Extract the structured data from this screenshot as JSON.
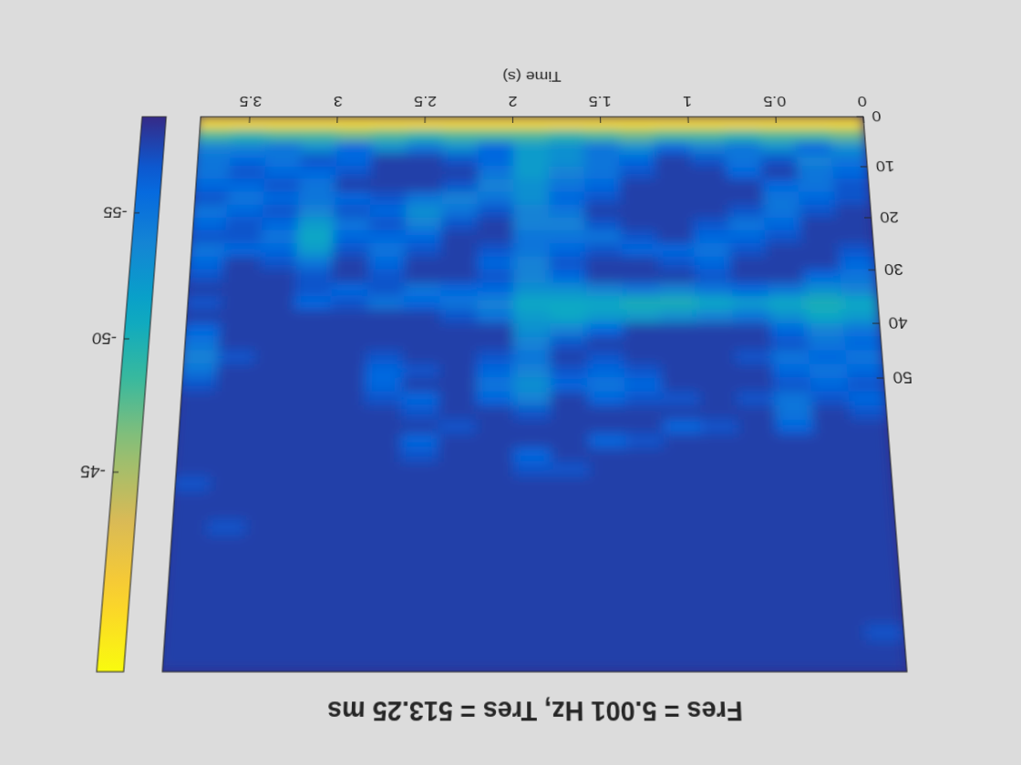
{
  "chart_data": {
    "type": "heatmap",
    "title": "Fres = 5.001 Hz, Tres = 513.25 ms",
    "x_label": "Time (s)",
    "xlim": [
      0,
      3.78
    ],
    "xticks": [
      0,
      0.5,
      1,
      1.5,
      2,
      2.5,
      3,
      3.5
    ],
    "ylim": [
      0,
      100
    ],
    "yticks": [
      0,
      10,
      20,
      30,
      40,
      50
    ],
    "colorbar_lim": [
      -59,
      -38
    ],
    "colorbar_ticks": [
      -55,
      -50,
      -45
    ],
    "x": [
      0.1,
      0.3,
      0.5,
      0.7,
      0.9,
      1.1,
      1.3,
      1.5,
      1.7,
      1.9,
      2.1,
      2.3,
      2.5,
      2.7,
      2.9,
      3.1,
      3.3,
      3.5,
      3.7
    ],
    "y": [
      1.25,
      3.75,
      6.25,
      8.75,
      11.25,
      13.75,
      16.25,
      18.75,
      21.25,
      23.75,
      26.25,
      28.75,
      31.25,
      33.75,
      36.25,
      38.75,
      41.25,
      43.75,
      46.25,
      48.75,
      51.25,
      53.75,
      56.25,
      58.75,
      61.25,
      63.75,
      66.25,
      68.75,
      71.25,
      73.75,
      76.25,
      78.75,
      81.25,
      83.75,
      86.25,
      88.75,
      91.25,
      93.75,
      96.25,
      98.75
    ],
    "z": [
      [
        -40,
        -40,
        -40,
        -40,
        -40,
        -40,
        -40,
        -40,
        -40,
        -40,
        -40,
        -40,
        -40,
        -40,
        -40,
        -40,
        -40,
        -40,
        -40
      ],
      [
        -47,
        -48,
        -48,
        -49,
        -48,
        -48,
        -47,
        -48,
        -49,
        -48,
        -48,
        -48,
        -49,
        -48,
        -47,
        -48,
        -48,
        -49,
        -48
      ],
      [
        -53,
        -56,
        -53,
        -55,
        -54,
        -56,
        -53,
        -55,
        -53,
        -52,
        -56,
        -53,
        -55,
        -53,
        -56,
        -53,
        -55,
        -54,
        -54
      ],
      [
        -55,
        -54,
        -57,
        -55,
        -57,
        -58,
        -56,
        -55,
        -53,
        -52,
        -56,
        -57,
        -58,
        -58,
        -56,
        -57,
        -55,
        -56,
        -55
      ],
      [
        -56,
        -55,
        -58,
        -56,
        -58,
        -58,
        -57,
        -55,
        -54,
        -52,
        -55,
        -58,
        -58,
        -58,
        -57,
        -56,
        -56,
        -57,
        -55
      ],
      [
        -57,
        -55,
        -56,
        -58,
        -58,
        -58,
        -58,
        -56,
        -55,
        -53,
        -54,
        -57,
        -58,
        -58,
        -58,
        -55,
        -57,
        -56,
        -56
      ],
      [
        -57,
        -56,
        -55,
        -58,
        -58,
        -58,
        -58,
        -57,
        -56,
        -53,
        -55,
        -54,
        -55,
        -57,
        -56,
        -55,
        -56,
        -55,
        -57
      ],
      [
        -58,
        -57,
        -55,
        -57,
        -58,
        -58,
        -58,
        -58,
        -55,
        -54,
        -57,
        -55,
        -53,
        -56,
        -57,
        -54,
        -57,
        -56,
        -55
      ],
      [
        -58,
        -58,
        -56,
        -55,
        -57,
        -58,
        -58,
        -57,
        -54,
        -54,
        -58,
        -57,
        -54,
        -57,
        -55,
        -52,
        -56,
        -57,
        -56
      ],
      [
        -58,
        -58,
        -57,
        -56,
        -56,
        -58,
        -57,
        -55,
        -55,
        -55,
        -58,
        -58,
        -56,
        -56,
        -56,
        -51,
        -55,
        -57,
        -57
      ],
      [
        -57,
        -58,
        -58,
        -57,
        -55,
        -56,
        -56,
        -57,
        -56,
        -55,
        -57,
        -58,
        -57,
        -55,
        -57,
        -52,
        -56,
        -56,
        -55
      ],
      [
        -56,
        -58,
        -58,
        -58,
        -56,
        -57,
        -58,
        -58,
        -57,
        -54,
        -56,
        -58,
        -58,
        -56,
        -58,
        -55,
        -57,
        -58,
        -56
      ],
      [
        -55,
        -56,
        -58,
        -58,
        -57,
        -58,
        -58,
        -58,
        -56,
        -54,
        -57,
        -58,
        -58,
        -57,
        -58,
        -57,
        -58,
        -58,
        -57
      ],
      [
        -54,
        -53,
        -55,
        -56,
        -55,
        -54,
        -55,
        -54,
        -53,
        -53,
        -56,
        -56,
        -55,
        -57,
        -56,
        -57,
        -58,
        -58,
        -58
      ],
      [
        -51,
        -50,
        -51,
        -52,
        -51,
        -50,
        -50,
        -51,
        -51,
        -51,
        -54,
        -55,
        -56,
        -55,
        -57,
        -56,
        -58,
        -58,
        -57
      ],
      [
        -52,
        -51,
        -53,
        -55,
        -54,
        -53,
        -52,
        -52,
        -51,
        -52,
        -55,
        -57,
        -58,
        -58,
        -58,
        -58,
        -58,
        -58,
        -58
      ],
      [
        -55,
        -54,
        -56,
        -58,
        -58,
        -58,
        -58,
        -56,
        -54,
        -53,
        -58,
        -58,
        -58,
        -58,
        -58,
        -58,
        -58,
        -58,
        -56
      ],
      [
        -56,
        -55,
        -57,
        -58,
        -58,
        -58,
        -58,
        -58,
        -57,
        -54,
        -58,
        -58,
        -58,
        -58,
        -58,
        -58,
        -58,
        -58,
        -55
      ],
      [
        -55,
        -56,
        -55,
        -57,
        -58,
        -58,
        -58,
        -57,
        -58,
        -55,
        -57,
        -58,
        -58,
        -57,
        -58,
        -58,
        -58,
        -57,
        -54
      ],
      [
        -56,
        -55,
        -56,
        -58,
        -58,
        -58,
        -57,
        -56,
        -57,
        -54,
        -56,
        -58,
        -57,
        -56,
        -58,
        -58,
        -58,
        -58,
        -55
      ],
      [
        -57,
        -56,
        -57,
        -58,
        -58,
        -58,
        -56,
        -55,
        -56,
        -53,
        -55,
        -58,
        -58,
        -56,
        -58,
        -58,
        -58,
        -58,
        -57
      ],
      [
        -56,
        -57,
        -55,
        -57,
        -58,
        -57,
        -57,
        -56,
        -58,
        -54,
        -56,
        -58,
        -56,
        -57,
        -58,
        -58,
        -58,
        -58,
        -58
      ],
      [
        -57,
        -58,
        -55,
        -58,
        -58,
        -58,
        -58,
        -58,
        -58,
        -57,
        -58,
        -58,
        -57,
        -58,
        -58,
        -58,
        -58,
        -58,
        -58
      ],
      [
        -58,
        -58,
        -56,
        -58,
        -57,
        -56,
        -58,
        -58,
        -58,
        -58,
        -58,
        -57,
        -58,
        -58,
        -58,
        -58,
        -58,
        -58,
        -58
      ],
      [
        -58,
        -58,
        -58,
        -58,
        -58,
        -58,
        -57,
        -56,
        -58,
        -58,
        -58,
        -58,
        -56,
        -58,
        -58,
        -58,
        -58,
        -58,
        -58
      ],
      [
        -58,
        -58,
        -58,
        -58,
        -58,
        -58,
        -58,
        -58,
        -58,
        -56,
        -58,
        -58,
        -57,
        -58,
        -58,
        -58,
        -58,
        -58,
        -58
      ],
      [
        -58,
        -58,
        -58,
        -58,
        -58,
        -58,
        -58,
        -58,
        -57,
        -57,
        -58,
        -58,
        -58,
        -58,
        -58,
        -58,
        -58,
        -58,
        -58
      ],
      [
        -58,
        -58,
        -58,
        -58,
        -58,
        -58,
        -58,
        -58,
        -58,
        -58,
        -58,
        -58,
        -58,
        -58,
        -58,
        -58,
        -58,
        -58,
        -57
      ],
      [
        -58,
        -58,
        -58,
        -58,
        -58,
        -58,
        -58,
        -58,
        -58,
        -58,
        -58,
        -58,
        -58,
        -58,
        -58,
        -58,
        -58,
        -58,
        -58
      ],
      [
        -58,
        -58,
        -58,
        -58,
        -58,
        -58,
        -58,
        -58,
        -58,
        -58,
        -58,
        -58,
        -58,
        -58,
        -58,
        -58,
        -58,
        -58,
        -58
      ],
      [
        -58,
        -58,
        -58,
        -58,
        -58,
        -58,
        -58,
        -58,
        -58,
        -58,
        -58,
        -58,
        -58,
        -58,
        -58,
        -58,
        -58,
        -57,
        -58
      ],
      [
        -58,
        -58,
        -58,
        -58,
        -58,
        -58,
        -58,
        -58,
        -58,
        -58,
        -58,
        -58,
        -58,
        -58,
        -58,
        -58,
        -58,
        -58,
        -58
      ],
      [
        -58,
        -58,
        -58,
        -58,
        -58,
        -58,
        -58,
        -58,
        -58,
        -58,
        -58,
        -58,
        -58,
        -58,
        -58,
        -58,
        -58,
        -58,
        -58
      ],
      [
        -58,
        -58,
        -58,
        -58,
        -58,
        -58,
        -58,
        -58,
        -58,
        -58,
        -58,
        -58,
        -58,
        -58,
        -58,
        -58,
        -58,
        -58,
        -58
      ],
      [
        -58,
        -58,
        -58,
        -58,
        -58,
        -58,
        -58,
        -58,
        -58,
        -58,
        -58,
        -58,
        -58,
        -58,
        -58,
        -58,
        -58,
        -58,
        -58
      ],
      [
        -58,
        -58,
        -58,
        -58,
        -58,
        -58,
        -58,
        -58,
        -58,
        -58,
        -58,
        -58,
        -58,
        -58,
        -58,
        -58,
        -58,
        -58,
        -58
      ],
      [
        -58,
        -58,
        -58,
        -58,
        -58,
        -58,
        -58,
        -58,
        -58,
        -58,
        -58,
        -58,
        -58,
        -58,
        -58,
        -58,
        -58,
        -58,
        -58
      ],
      [
        -57,
        -58,
        -58,
        -58,
        -58,
        -58,
        -58,
        -58,
        -58,
        -58,
        -58,
        -58,
        -58,
        -58,
        -58,
        -58,
        -58,
        -58,
        -58
      ],
      [
        -58,
        -58,
        -58,
        -58,
        -58,
        -58,
        -58,
        -58,
        -58,
        -58,
        -58,
        -58,
        -58,
        -58,
        -58,
        -58,
        -58,
        -58,
        -58
      ],
      [
        -58,
        -58,
        -58,
        -58,
        -58,
        -58,
        -58,
        -58,
        -58,
        -58,
        -58,
        -58,
        -58,
        -58,
        -58,
        -58,
        -58,
        -58,
        -58
      ]
    ]
  }
}
